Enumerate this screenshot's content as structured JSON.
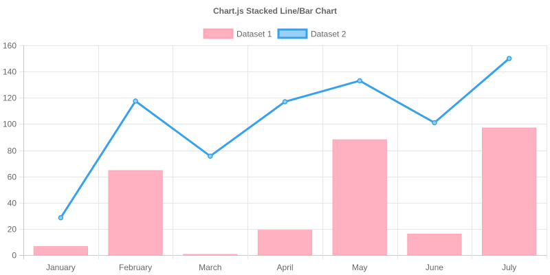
{
  "chart_data": {
    "type": "bar",
    "title": "Chart.js Stacked Line/Bar Chart",
    "categories": [
      "January",
      "February",
      "March",
      "April",
      "May",
      "June",
      "July"
    ],
    "ylim": [
      0,
      160
    ],
    "y_ticks": [
      0,
      20,
      40,
      60,
      80,
      100,
      120,
      140,
      160
    ],
    "grid": true,
    "stacked": true,
    "legend_position": "top",
    "series": [
      {
        "name": "Dataset 1",
        "type": "bar",
        "values": [
          6.5,
          64.5,
          0.5,
          19,
          88,
          16,
          97
        ],
        "fill": "#ffb1c1",
        "stroke": "#ffa6b9"
      },
      {
        "name": "Dataset 2",
        "type": "line",
        "values": [
          22,
          53,
          75,
          98,
          45,
          85,
          53
        ],
        "fill": "#9ad0f5",
        "stroke": "#36a2eb"
      }
    ],
    "colors": {
      "grid": "#e5e5e5",
      "axis": "#c8c8c8",
      "text": "#666666"
    }
  }
}
